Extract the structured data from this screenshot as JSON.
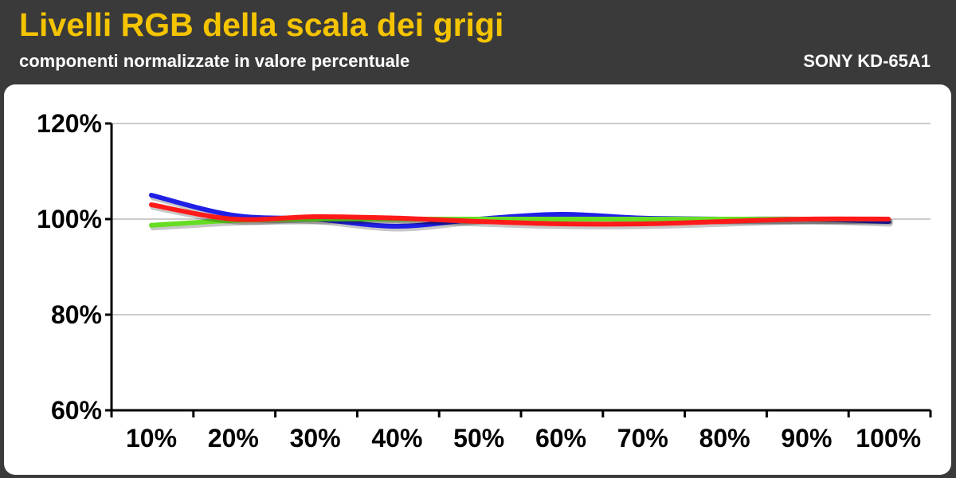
{
  "header": {
    "title": "Livelli RGB della scala dei grigi",
    "subtitle": "componenti normalizzate in valore percentuale",
    "model": "SONY KD-65A1"
  },
  "chart_data": {
    "type": "line",
    "title": "Livelli RGB della scala dei grigi",
    "subtitle": "componenti normalizzate in valore percentuale",
    "categories": [
      "10%",
      "20%",
      "30%",
      "40%",
      "50%",
      "60%",
      "70%",
      "80%",
      "90%",
      "100%"
    ],
    "y_ticks": [
      "60%",
      "80%",
      "100%",
      "120%"
    ],
    "ylim": [
      60,
      120
    ],
    "grid": true,
    "series": [
      {
        "color": "#1f1fe6",
        "values": [
          105.0,
          100.8,
          100.0,
          98.5,
          100.0,
          101.0,
          100.2,
          100.0,
          100.0,
          99.5
        ]
      },
      {
        "color": "#66dd22",
        "values": [
          98.7,
          99.7,
          100.0,
          100.0,
          100.0,
          100.0,
          100.0,
          100.0,
          100.0,
          100.0
        ]
      },
      {
        "color": "#ff1a1a",
        "values": [
          103.0,
          100.0,
          100.5,
          100.2,
          99.5,
          99.0,
          99.0,
          99.5,
          100.0,
          100.0
        ]
      }
    ]
  }
}
